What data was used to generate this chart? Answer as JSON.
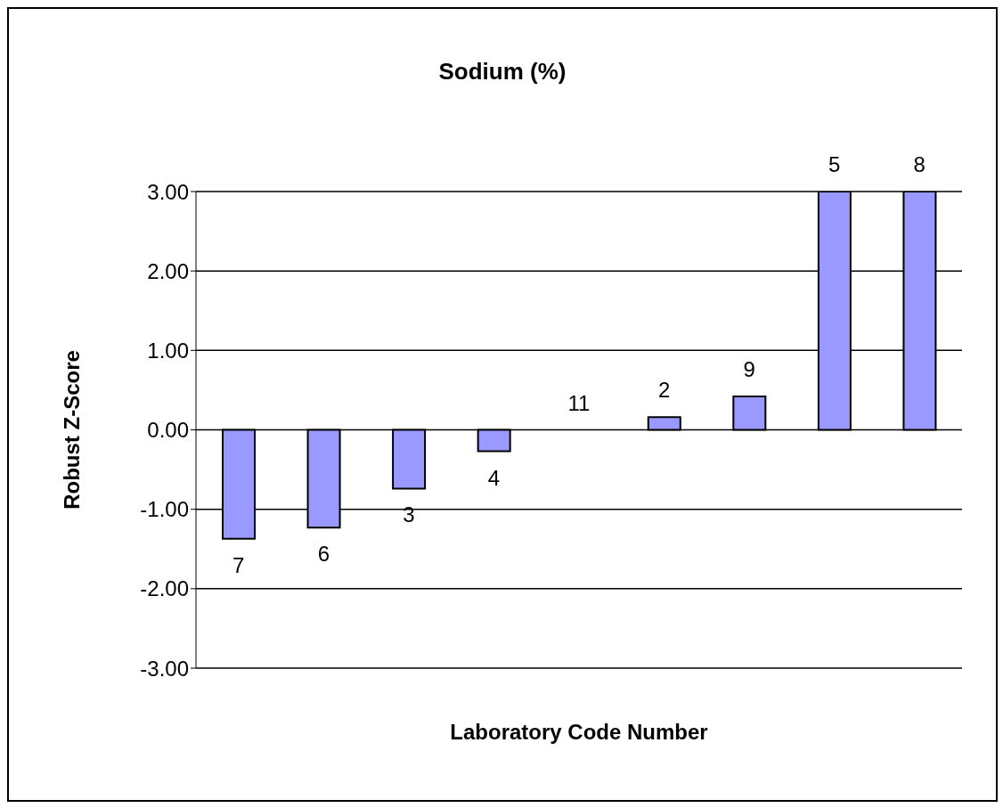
{
  "chart_data": {
    "type": "bar",
    "title": "Sodium (%)",
    "xlabel": "Laboratory Code Number",
    "ylabel": "Robust  Z-Score",
    "categories": [
      "7",
      "6",
      "3",
      "4",
      "11",
      "2",
      "9",
      "5",
      "8"
    ],
    "values": [
      -1.37,
      -1.23,
      -0.74,
      -0.27,
      0,
      0.16,
      0.42,
      3,
      3
    ],
    "color": "#9999ff",
    "ylim": [
      -3,
      3
    ],
    "yticks": [
      {
        "value": -3,
        "label": "-3.00"
      },
      {
        "value": -2,
        "label": "-2.00"
      },
      {
        "value": -1,
        "label": "-1.00"
      },
      {
        "value": 0,
        "label": "0.00"
      },
      {
        "value": 1,
        "label": "1.00"
      },
      {
        "value": 2,
        "label": "2.00"
      },
      {
        "value": 3,
        "label": "3.00"
      }
    ],
    "grid": "y",
    "legend": false,
    "tick_labels": "y"
  }
}
